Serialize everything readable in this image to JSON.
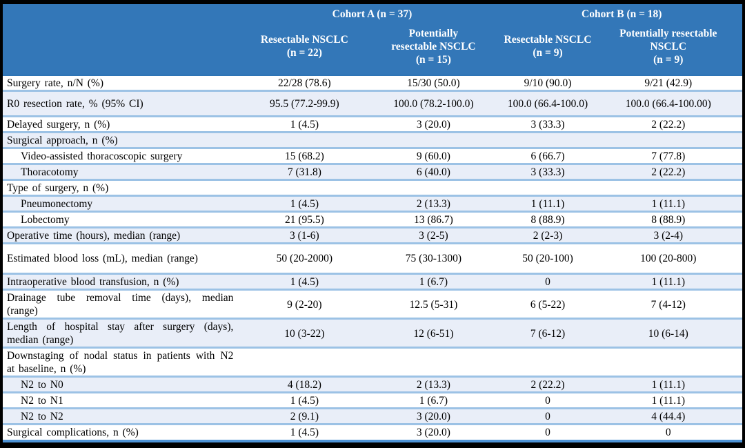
{
  "colors": {
    "header_bg": "#3377b8",
    "stripe_bg": "#e9eef8",
    "row_border": "#9cc2e5",
    "header_border": "#2e74b5",
    "table_bottom_border": "#4f94d6",
    "frame": "#000000",
    "header_text": "#ffffff",
    "body_text": "#000000"
  },
  "header": {
    "groups": [
      {
        "label": "Cohort A (n = 37)"
      },
      {
        "label": "Cohort B (n = 18)"
      }
    ],
    "columns": [
      {
        "label": "Resectable NSCLC\n(n = 22)"
      },
      {
        "label": "Potentially\nresectable NSCLC\n(n = 15)"
      },
      {
        "label": "Resectable NSCLC\n(n = 9)"
      },
      {
        "label": "Potentially resectable\nNSCLC\n(n = 9)"
      }
    ]
  },
  "rows": [
    {
      "label": "Surgery rate, n/N (%)",
      "indent": false,
      "section": false,
      "values": [
        "22/28 (78.6)",
        "15/30 (50.0)",
        "9/10 (90.0)",
        "9/21 (42.9)"
      ]
    },
    {
      "label": "R0 resection rate, % (95% CI)",
      "indent": false,
      "section": false,
      "values": [
        "95.5 (77.2-99.9)",
        "100.0 (78.2-100.0)",
        "100.0 (66.4-100.0)",
        "100.0 (66.4-100.00)"
      ]
    },
    {
      "label": "Delayed surgery, n (%)",
      "indent": false,
      "section": false,
      "values": [
        "1 (4.5)",
        "3 (20.0)",
        "3 (33.3)",
        "2 (22.2)"
      ]
    },
    {
      "label": "Surgical approach, n (%)",
      "indent": false,
      "section": true,
      "values": [
        "",
        "",
        "",
        ""
      ]
    },
    {
      "label": "Video-assisted thoracoscopic surgery",
      "indent": true,
      "section": false,
      "values": [
        "15 (68.2)",
        "9 (60.0)",
        "6 (66.7)",
        "7 (77.8)"
      ]
    },
    {
      "label": "Thoracotomy",
      "indent": true,
      "section": false,
      "values": [
        "7 (31.8)",
        "6 (40.0)",
        "3 (33.3)",
        "2 (22.2)"
      ]
    },
    {
      "label": "Type of surgery, n (%)",
      "indent": false,
      "section": true,
      "values": [
        "",
        "",
        "",
        ""
      ]
    },
    {
      "label": "Pneumonectomy",
      "indent": true,
      "section": false,
      "values": [
        "1 (4.5)",
        "2 (13.3)",
        "1 (11.1)",
        "1 (11.1)"
      ]
    },
    {
      "label": "Lobectomy",
      "indent": true,
      "section": false,
      "values": [
        "21 (95.5)",
        "13 (86.7)",
        "8 (88.9)",
        "8 (88.9)"
      ]
    },
    {
      "label": "Operative time (hours), median (range)",
      "indent": false,
      "section": false,
      "values": [
        "3 (1-6)",
        "3 (2-5)",
        "2 (2-3)",
        "3 (2-4)"
      ]
    },
    {
      "label": "Estimated blood loss (mL), median (range)",
      "indent": false,
      "section": false,
      "values": [
        "50 (20-2000)",
        "75 (30-1300)",
        "50 (20-100)",
        "100 (20-800)"
      ]
    },
    {
      "label": "Intraoperative blood transfusion, n (%)",
      "indent": false,
      "section": false,
      "values": [
        "1 (4.5)",
        "1 (6.7)",
        "0",
        "1 (11.1)"
      ]
    },
    {
      "label": "Drainage tube removal time (days), median (range)",
      "indent": false,
      "section": false,
      "values": [
        "9 (2-20)",
        "12.5 (5-31)",
        "6 (5-22)",
        "7 (4-12)"
      ]
    },
    {
      "label": "Length of hospital stay after surgery (days), median (range)",
      "indent": false,
      "section": false,
      "values": [
        "10 (3-22)",
        "12 (6-51)",
        "7 (6-12)",
        "10 (6-14)"
      ]
    },
    {
      "label": "Downstaging of nodal status in patients with N2 at baseline, n (%)",
      "indent": false,
      "section": true,
      "values": [
        "",
        "",
        "",
        ""
      ]
    },
    {
      "label": "N2 to N0",
      "indent": true,
      "section": false,
      "values": [
        "4 (18.2)",
        "2 (13.3)",
        "2 (22.2)",
        "1 (11.1)"
      ]
    },
    {
      "label": "N2 to N1",
      "indent": true,
      "section": false,
      "values": [
        "1 (4.5)",
        "1 (6.7)",
        "0",
        "1 (11.1)"
      ]
    },
    {
      "label": "N2 to N2",
      "indent": true,
      "section": false,
      "values": [
        "2 (9.1)",
        "3 (20.0)",
        "0",
        "4 (44.4)"
      ]
    },
    {
      "label": "Surgical complications, n (%)",
      "indent": false,
      "section": false,
      "values": [
        "1 (4.5)",
        "3 (20.0)",
        "0",
        "0"
      ]
    }
  ]
}
